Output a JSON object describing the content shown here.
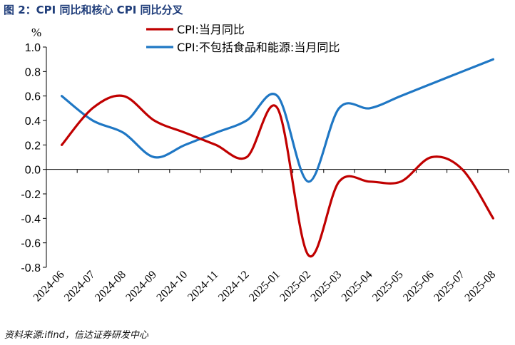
{
  "figure": {
    "title": "图 2：CPI 同比和核心 CPI 同比分叉",
    "source": "资料来源:ifind，信达证券研发中心"
  },
  "chart_data": {
    "type": "line",
    "title": "",
    "xlabel": "",
    "ylabel": "%",
    "ylim": [
      -0.8,
      1.0
    ],
    "yticks": [
      "1.0",
      "0.8",
      "0.6",
      "0.4",
      "0.2",
      "0.0",
      "-0.2",
      "-0.4",
      "-0.6",
      "-0.8"
    ],
    "categories": [
      "2024-06",
      "2024-07",
      "2024-08",
      "2024-09",
      "2024-10",
      "2024-11",
      "2024-12",
      "2025-01",
      "2025-02",
      "2025-03",
      "2025-04",
      "2025-05",
      "2025-06",
      "2025-07",
      "2025-08"
    ],
    "grid": false,
    "legend_position": "top",
    "series": [
      {
        "name": "CPI:当月同比",
        "color": "#c00000",
        "values": [
          0.2,
          0.5,
          0.6,
          0.4,
          0.3,
          0.2,
          0.1,
          0.5,
          -0.7,
          -0.1,
          -0.1,
          -0.1,
          0.1,
          0.0,
          -0.4
        ]
      },
      {
        "name": "CPI:不包括食品和能源:当月同比",
        "color": "#1f77c4",
        "values": [
          0.6,
          0.4,
          0.3,
          0.1,
          0.2,
          0.3,
          0.4,
          0.6,
          -0.1,
          0.5,
          0.5,
          0.6,
          0.7,
          0.8,
          0.9
        ]
      }
    ]
  }
}
